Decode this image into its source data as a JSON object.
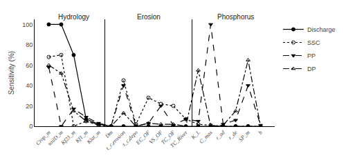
{
  "chart_data": {
    "type": "line",
    "categories": [
      "Crop_m",
      "soilD_m",
      "Kf23_m",
      "Kf1_m",
      "Klat_m",
      "Dm",
      "τ_c,erosion",
      "τ_c,depo",
      "EC_OF",
      "VS_OF",
      "TC_OF",
      "TC_River",
      "K_L",
      "C_max",
      "r_ad",
      "r_de",
      "SP_m",
      "b"
    ],
    "series": [
      {
        "name": "Discharge",
        "color": "black",
        "marker": "circle",
        "line_style": "solid",
        "values": [
          100,
          100,
          70,
          7,
          2,
          0,
          0,
          0,
          0,
          0,
          0,
          0,
          0,
          0,
          0,
          0,
          0,
          0
        ]
      },
      {
        "name": "SSC",
        "color": "black",
        "marker": "circle-open",
        "line_style": "dot",
        "values": [
          68,
          70,
          0,
          5,
          1,
          0,
          45,
          2,
          28,
          22,
          20,
          7,
          2,
          1,
          0,
          0,
          0,
          0
        ]
      },
      {
        "name": "PP",
        "color": "black",
        "marker": "triangle-down",
        "line_style": "dash",
        "values": [
          58,
          0,
          17,
          9,
          3,
          0,
          40,
          0,
          3,
          20,
          1,
          7,
          5,
          100,
          2,
          6,
          40,
          1
        ]
      },
      {
        "name": "DP",
        "color": "black",
        "marker": "triangle-up-open",
        "line_style": "dashdot",
        "values": [
          60,
          52,
          15,
          5,
          2,
          0,
          13,
          0,
          3,
          2,
          2,
          0,
          55,
          0,
          1,
          15,
          65,
          0
        ]
      }
    ],
    "ylabel": "Sensitivity (%)",
    "ylim": [
      0,
      105
    ],
    "yticks": [
      0,
      20,
      40,
      60,
      80,
      100
    ],
    "annotations": [
      {
        "text": "Hydrology",
        "x": "Kf23_m",
        "y": 102,
        "first": "Crop_m",
        "last": "Klat_m"
      },
      {
        "text": "Erosion",
        "x": "EC_OF",
        "y": 102,
        "first": "Dm",
        "last": "TC_River"
      },
      {
        "text": "Phosphorus",
        "x": "r_de",
        "y": 102,
        "first": "K_L",
        "last": "b"
      }
    ],
    "grid": false,
    "legend": "right"
  }
}
